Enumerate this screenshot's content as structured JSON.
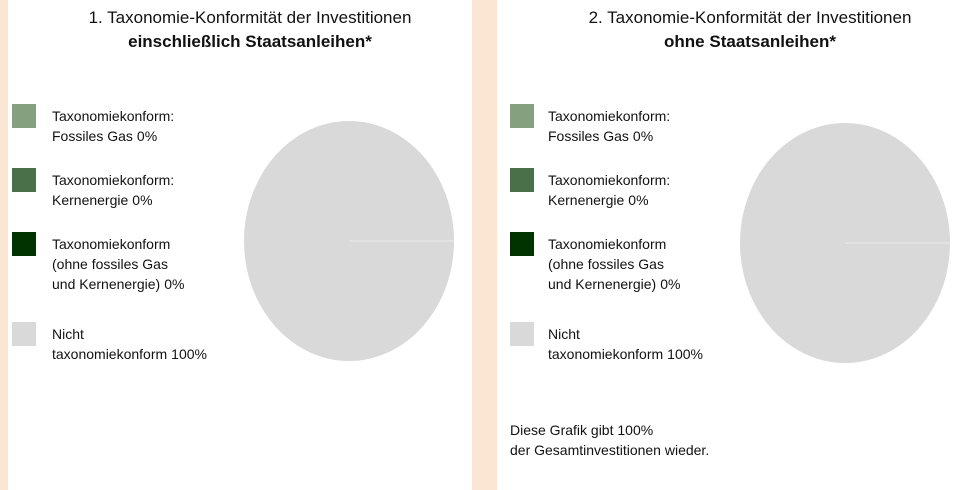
{
  "chart_data": [
    {
      "type": "pie",
      "title": "1. Taxonomie-Konformität der Investitionen",
      "subtitle": "einschließlich Staatsanleihen*",
      "categories": [
        "Taxonomiekonform:\nFossiles Gas",
        "Taxonomiekonform:\nKernenergie",
        "Taxonomiekonform\n(ohne fossiles Gas\nund Kernenergie)",
        "Nicht\ntaxonomiekonform"
      ],
      "values": [
        0,
        0,
        0,
        100
      ],
      "value_labels": [
        "0%",
        "0%",
        "0%",
        "100%"
      ],
      "colors": [
        "#84a07e",
        "#4a7049",
        "#003300",
        "#d9d9d9"
      ]
    },
    {
      "type": "pie",
      "title": "2. Taxonomie-Konformität der Investitionen",
      "subtitle": "ohne Staatsanleihen*",
      "categories": [
        "Taxonomiekonform:\nFossiles Gas",
        "Taxonomiekonform:\nKernenergie",
        "Taxonomiekonform\n(ohne fossiles Gas\nund Kernenergie)",
        "Nicht\ntaxonomiekonform"
      ],
      "values": [
        0,
        0,
        0,
        100
      ],
      "value_labels": [
        "0%",
        "0%",
        "0%",
        "100%"
      ],
      "colors": [
        "#84a07e",
        "#4a7049",
        "#003300",
        "#d9d9d9"
      ],
      "annotation": "Diese Grafik gibt 100%\nder Gesamtinvestitionen wieder."
    }
  ]
}
